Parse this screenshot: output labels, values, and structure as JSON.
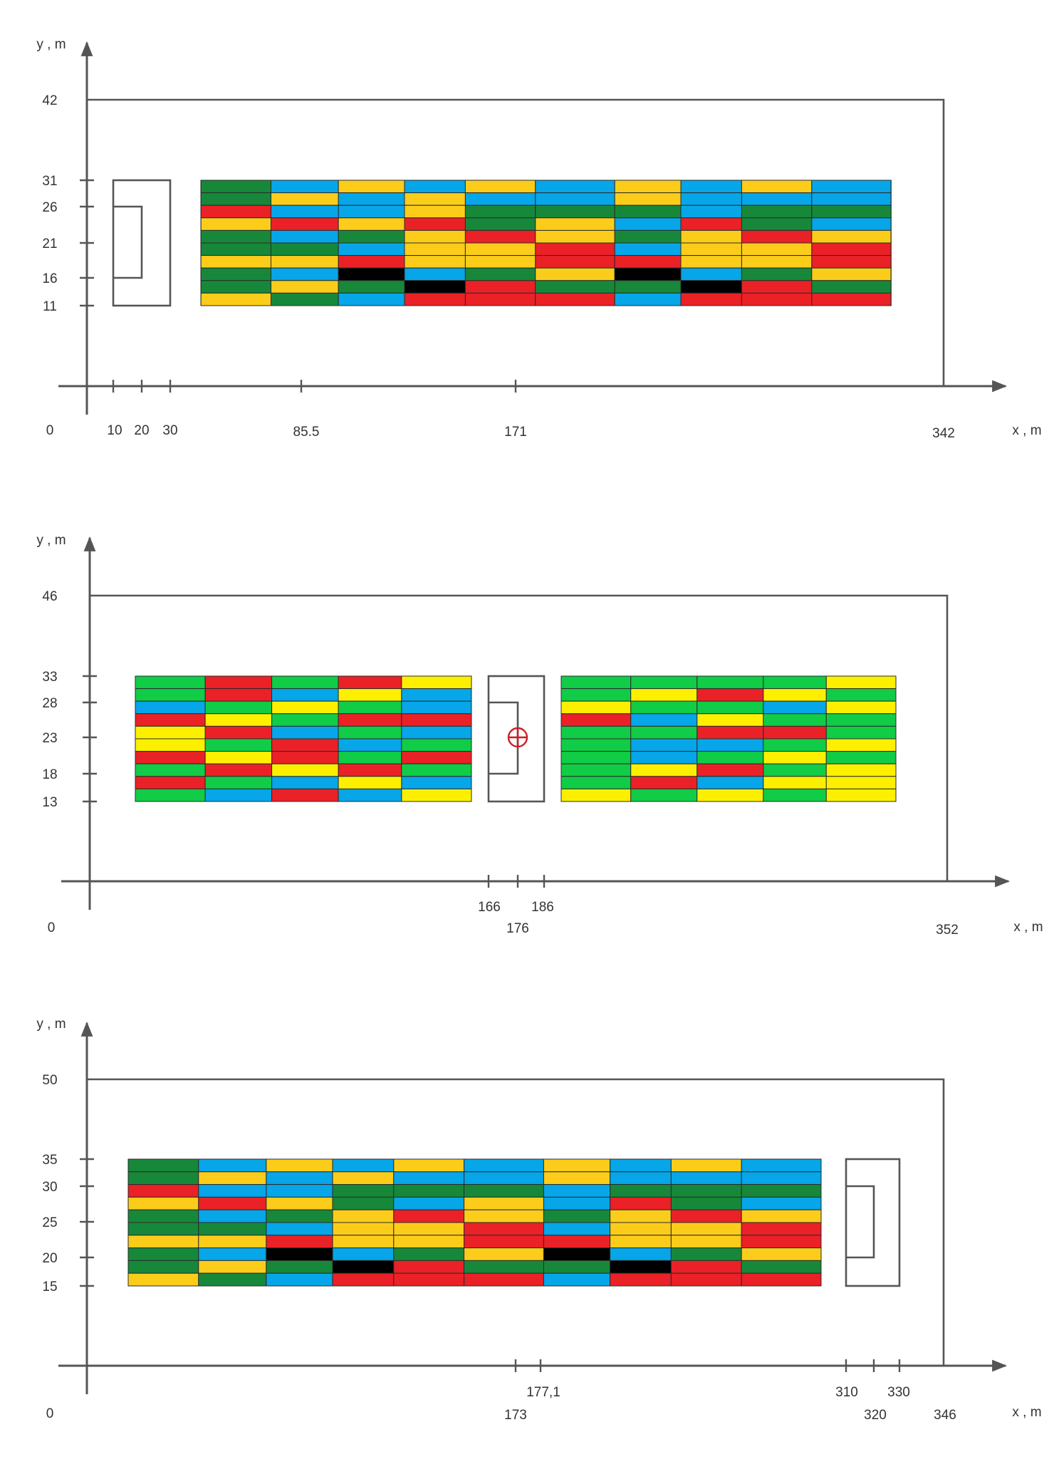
{
  "palette_1": {
    "G": "#17883a",
    "B": "#06a6e8",
    "Y": "#fbcd1a",
    "R": "#ea2126",
    "K": "#000000"
  },
  "palette_2": {
    "G": "#11cc46",
    "B": "#06a6e8",
    "Y": "#fcf000",
    "R": "#ea2126"
  },
  "panels": [
    {
      "y_axis_label": "y , m",
      "x_axis_label": "x , m",
      "origin_label": "0",
      "x_ticks": [
        {
          "value": 10,
          "label": "10"
        },
        {
          "value": 20,
          "label": "20"
        },
        {
          "value": 30,
          "label": "30"
        },
        {
          "value": 85.5,
          "label": "85.5"
        },
        {
          "value": 171,
          "label": "171"
        },
        {
          "value": 342,
          "label": "342"
        }
      ],
      "y_ticks": [
        {
          "value": 42,
          "label": "42"
        },
        {
          "value": 31,
          "label": "31"
        },
        {
          "value": 26,
          "label": "26"
        },
        {
          "value": 21,
          "label": "21"
        },
        {
          "value": 16,
          "label": "16"
        },
        {
          "value": 11,
          "label": "11"
        }
      ],
      "boundary": {
        "x_max": 342,
        "y_max": 42
      },
      "stage_block": {
        "x_from": 10,
        "x_to": 30,
        "inner_x": 20,
        "y_from": 11,
        "y_to": 31,
        "inner_y_from": 16,
        "inner_y_to": 26,
        "open_side": "left"
      },
      "crowd_block": {
        "x_from": 43,
        "x_to": 321,
        "y_from": 11,
        "y_to": 31,
        "palette": "palette_1",
        "rows": [
          "GBYBYBYBYB",
          "GYBYBBYBBB",
          "RBBYGGGBGG",
          "YRYRGYBRGB",
          "GBGYRYGYRY",
          "GGBYYRBYYR",
          "YYRYYRRYYR",
          "GBKBGYKBGY",
          "GYGKRGGKRG",
          "YGBRRRBRRR"
        ]
      }
    },
    {
      "y_axis_label": "y , m",
      "x_axis_label": "x , m",
      "origin_label": "0",
      "x_ticks": [
        {
          "value": 166,
          "label": "166"
        },
        {
          "value": 176,
          "label": "176"
        },
        {
          "value": 186,
          "label": "186"
        },
        {
          "value": 352,
          "label": "352"
        }
      ],
      "y_ticks": [
        {
          "value": 46,
          "label": "46"
        },
        {
          "value": 33,
          "label": "33"
        },
        {
          "value": 28,
          "label": "28"
        },
        {
          "value": 23,
          "label": "23"
        },
        {
          "value": 18,
          "label": "18"
        },
        {
          "value": 13,
          "label": "13"
        }
      ],
      "boundary": {
        "x_max": 352,
        "y_max": 46
      },
      "stage_block": {
        "x_from": 166,
        "x_to": 186,
        "inner_x": 176,
        "y_from": 13,
        "y_to": 33,
        "inner_y_from": 18,
        "inner_y_to": 28,
        "open_side": "left",
        "center_marker": {
          "x": 176,
          "y": 23,
          "symbol": "crosshair-circle"
        }
      },
      "crowd_blocks": [
        {
          "x_from": 18,
          "x_to": 152,
          "y_from": 13,
          "y_to": 33,
          "palette": "palette_2",
          "rows": [
            "GRGRY",
            "GRBYB",
            "BGYGB",
            "RYGRR",
            "YRBGB",
            "YGRBG",
            "RYRGR",
            "GRYRG",
            "RGBYB",
            "GBRBY"
          ]
        },
        {
          "x_from": 188,
          "x_to": 322,
          "y_from": 13,
          "y_to": 33,
          "palette": "palette_2",
          "rows": [
            "GGGGY",
            "GYRYG",
            "YGGBY",
            "RBYGG",
            "GGRRG",
            "GBBGY",
            "GBGYG",
            "GYRGY",
            "GRBYY",
            "YGYGY"
          ]
        }
      ]
    },
    {
      "y_axis_label": "y , m",
      "x_axis_label": "x , m",
      "origin_label": "0",
      "x_ticks": [
        {
          "value": 173,
          "label": "173"
        },
        {
          "value": 177.1,
          "label": "177,1"
        },
        {
          "value": 310,
          "label": "310"
        },
        {
          "value": 320,
          "label": "320"
        },
        {
          "value": 330,
          "label": "330"
        },
        {
          "value": 346,
          "label": "346"
        }
      ],
      "y_ticks": [
        {
          "value": 50,
          "label": "50"
        },
        {
          "value": 35,
          "label": "35"
        },
        {
          "value": 30,
          "label": "30"
        },
        {
          "value": 25,
          "label": "25"
        },
        {
          "value": 20,
          "label": "20"
        },
        {
          "value": 15,
          "label": "15"
        }
      ],
      "boundary": {
        "x_max": 346,
        "y_max": 50
      },
      "stage_block": {
        "x_from": 310,
        "x_to": 330,
        "inner_x": 320,
        "y_from": 15,
        "y_to": 35,
        "inner_y_from": 20,
        "inner_y_to": 30,
        "open_side": "left"
      },
      "crowd_block": {
        "x_from": 17,
        "x_to": 295,
        "y_from": 15,
        "y_to": 35,
        "palette": "palette_1",
        "rows": [
          "GBYBYBYBYB",
          "GYBYBBYBBB",
          "RBBGGGBGGG",
          "YRYGBYBRGB",
          "GBGYRYGYRY",
          "GGBYYRBYYR",
          "YYRYYRRYYR",
          "GBKBGYKBGY",
          "GYGKRGGKRG",
          "YGBRRRBRRR"
        ]
      }
    }
  ]
}
